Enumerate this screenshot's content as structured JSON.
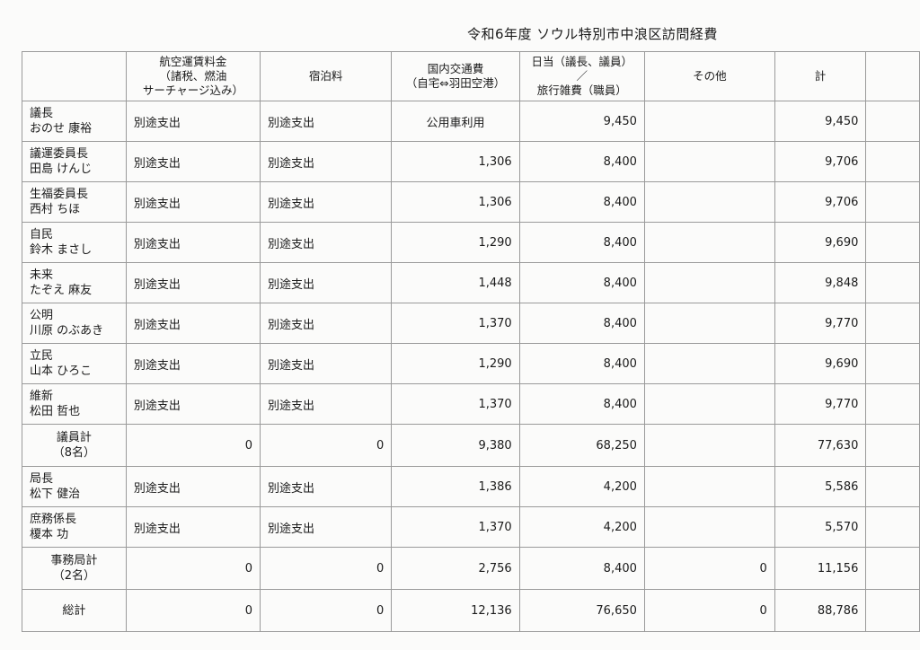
{
  "title": "令和6年度 ソウル特別市中浪区訪問経費",
  "columns": [
    "",
    "航空運賃料金\n（諸税、燃油\nサーチャージ込み）",
    "宿泊料",
    "国内交通費\n（自宅⇔羽田空港）",
    "日当（議長、議員）／\n旅行雑費（職員）",
    "その他",
    "計",
    ""
  ],
  "rows": [
    {
      "type": "person",
      "role": "議長",
      "name": "おのせ 康裕",
      "cells": [
        "別途支出",
        "別途支出",
        "公用車利用",
        "9,450",
        "",
        "9,450"
      ]
    },
    {
      "type": "person",
      "role": "議運委員長",
      "name": "田島 けんじ",
      "cells": [
        "別途支出",
        "別途支出",
        "1,306",
        "8,400",
        "",
        "9,706"
      ]
    },
    {
      "type": "person",
      "role": "生福委員長",
      "name": "西村 ちほ",
      "cells": [
        "別途支出",
        "別途支出",
        "1,306",
        "8,400",
        "",
        "9,706"
      ]
    },
    {
      "type": "person",
      "role": "自民",
      "name": "鈴木 まさし",
      "cells": [
        "別途支出",
        "別途支出",
        "1,290",
        "8,400",
        "",
        "9,690"
      ]
    },
    {
      "type": "person",
      "role": "未来",
      "name": "たぞえ 麻友",
      "cells": [
        "別途支出",
        "別途支出",
        "1,448",
        "8,400",
        "",
        "9,848"
      ]
    },
    {
      "type": "person",
      "role": "公明",
      "name": "川原 のぶあき",
      "cells": [
        "別途支出",
        "別途支出",
        "1,370",
        "8,400",
        "",
        "9,770"
      ]
    },
    {
      "type": "person",
      "role": "立民",
      "name": "山本 ひろこ",
      "cells": [
        "別途支出",
        "別途支出",
        "1,290",
        "8,400",
        "",
        "9,690"
      ]
    },
    {
      "type": "person",
      "role": "維新",
      "name": "松田 哲也",
      "cells": [
        "別途支出",
        "別途支出",
        "1,370",
        "8,400",
        "",
        "9,770"
      ]
    },
    {
      "type": "sum",
      "role": "議員計",
      "name": "（8名）",
      "cells": [
        "0",
        "0",
        "9,380",
        "68,250",
        "",
        "77,630"
      ]
    },
    {
      "type": "person",
      "role": "局長",
      "name": "松下 健治",
      "cells": [
        "別途支出",
        "別途支出",
        "1,386",
        "4,200",
        "",
        "5,586"
      ]
    },
    {
      "type": "person",
      "role": "庶務係長",
      "name": "榎本 功",
      "cells": [
        "別途支出",
        "別途支出",
        "1,370",
        "4,200",
        "",
        "5,570"
      ]
    },
    {
      "type": "sum",
      "role": "事務局計",
      "name": "（2名）",
      "cells": [
        "0",
        "0",
        "2,756",
        "8,400",
        "0",
        "11,156"
      ]
    },
    {
      "type": "sum",
      "role": "総計",
      "name": "",
      "cells": [
        "0",
        "0",
        "12,136",
        "76,650",
        "0",
        "88,786"
      ]
    }
  ]
}
